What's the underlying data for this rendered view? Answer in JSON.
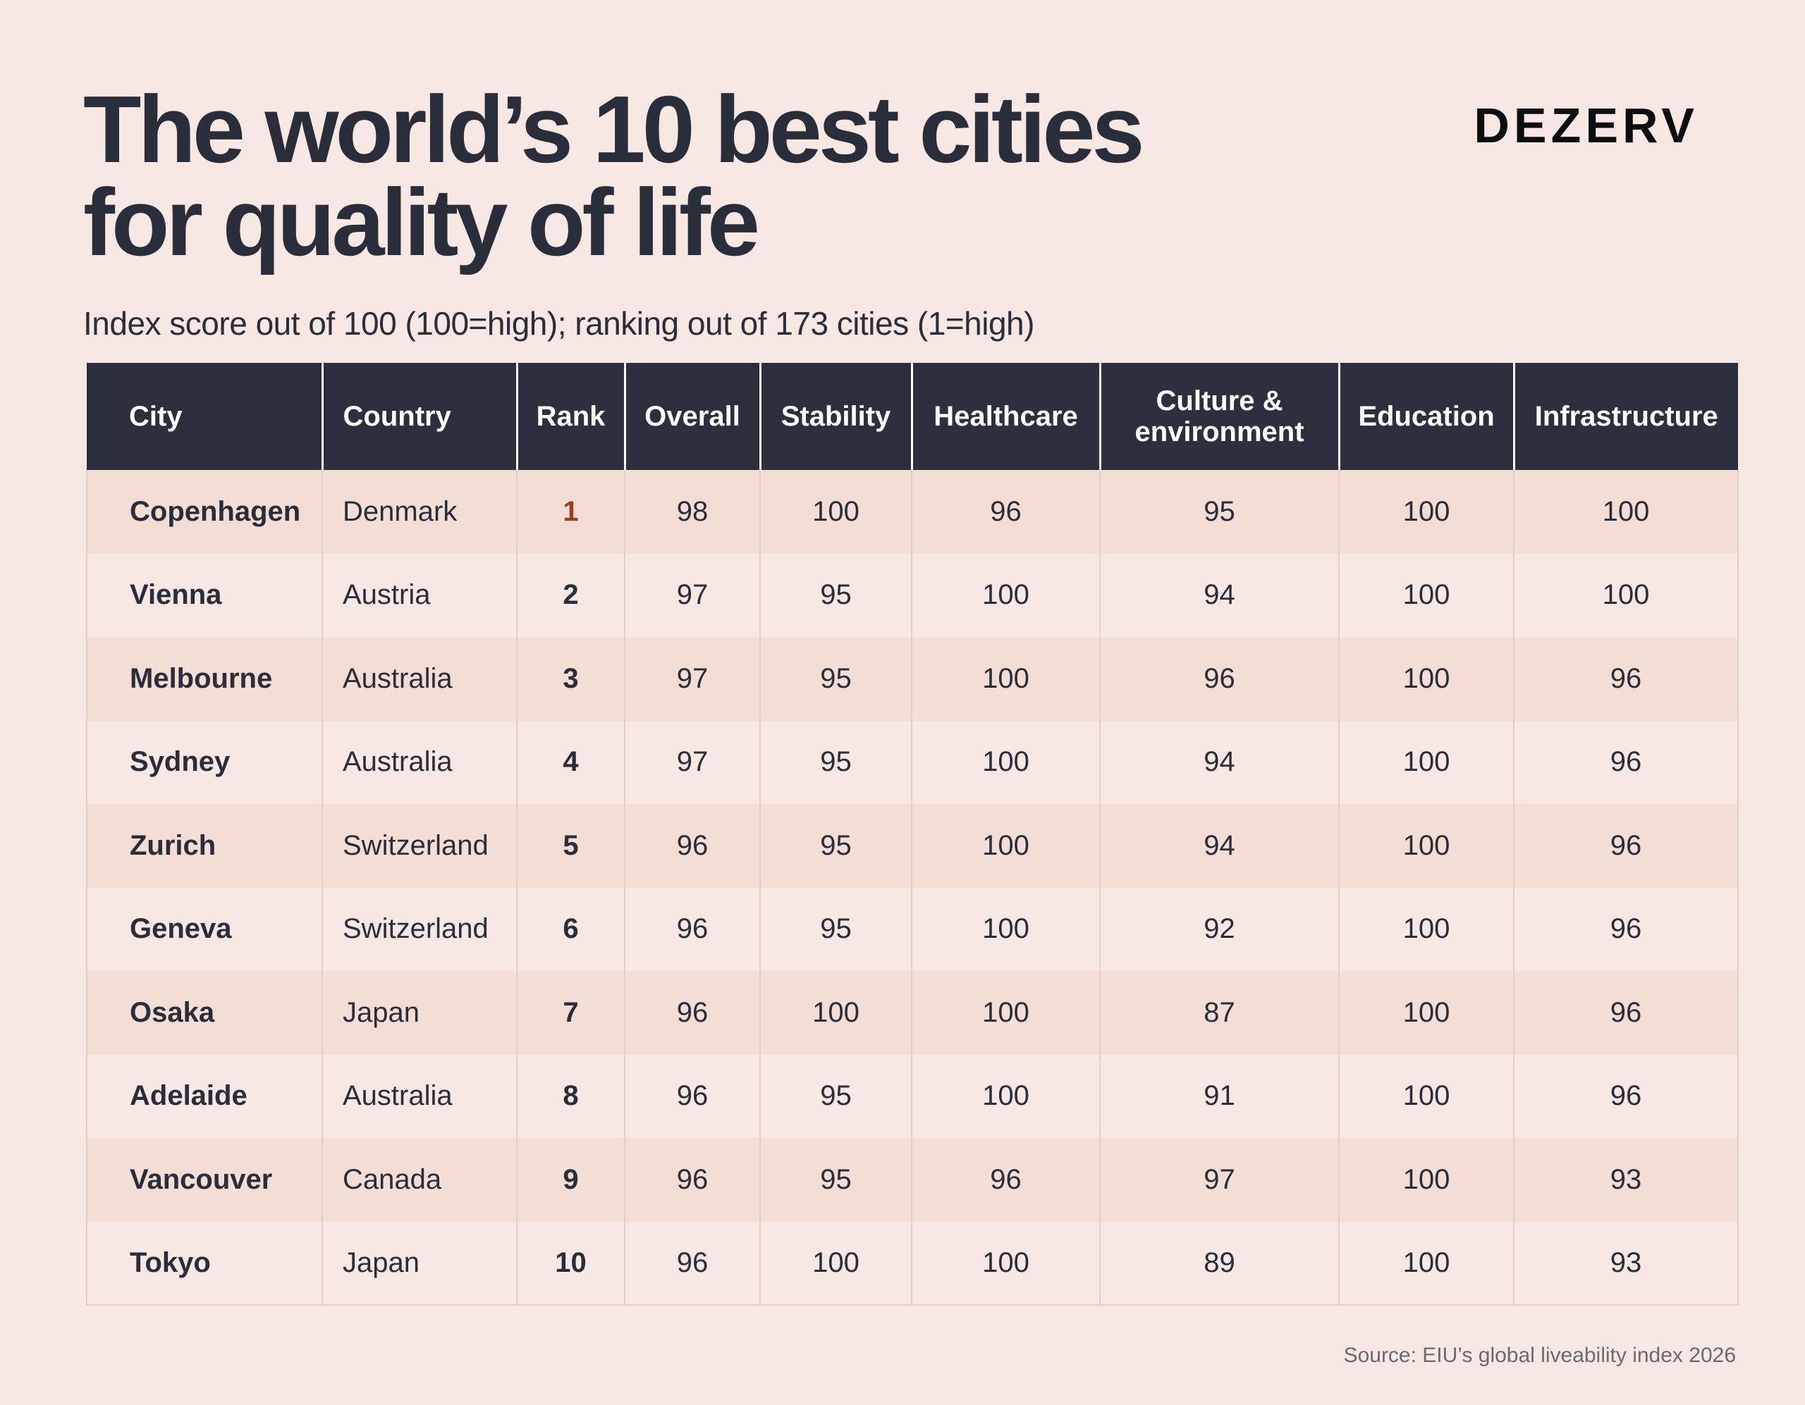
{
  "header": {
    "title_line1": "The world’s 10 best cities",
    "title_line2": "for quality of life",
    "subtitle": "Index score out of 100 (100=high); ranking out of 173 cities (1=high)",
    "logo": "DEZERV"
  },
  "footer": {
    "source": "Source: EIU’s global liveability index 2026"
  },
  "colors": {
    "background": "#f8e8e3",
    "header_fill": "#2b2f3e",
    "row_alt_fill": "#f4ddd5",
    "rank_highlight": "#9a3b22"
  },
  "chart_data": {
    "type": "table",
    "title": "The world’s 10 best cities for quality of life",
    "subtitle": "Index score out of 100 (100=high); ranking out of 173 cities (1=high)",
    "columns": [
      "City",
      "Country",
      "Rank",
      "Overall",
      "Stability",
      "Healthcare",
      "Culture & environment",
      "Education",
      "Infrastructure"
    ],
    "rows": [
      [
        "Copenhagen",
        "Denmark",
        "1",
        "98",
        "100",
        "96",
        "95",
        "100",
        "100"
      ],
      [
        "Vienna",
        "Austria",
        "2",
        "97",
        "95",
        "100",
        "94",
        "100",
        "100"
      ],
      [
        "Melbourne",
        "Australia",
        "3",
        "97",
        "95",
        "100",
        "96",
        "100",
        "96"
      ],
      [
        "Sydney",
        "Australia",
        "4",
        "97",
        "95",
        "100",
        "94",
        "100",
        "96"
      ],
      [
        "Zurich",
        "Switzerland",
        "5",
        "96",
        "95",
        "100",
        "94",
        "100",
        "96"
      ],
      [
        "Geneva",
        "Switzerland",
        "6",
        "96",
        "95",
        "100",
        "92",
        "100",
        "96"
      ],
      [
        "Osaka",
        "Japan",
        "7",
        "96",
        "100",
        "100",
        "87",
        "100",
        "96"
      ],
      [
        "Adelaide",
        "Australia",
        "8",
        "96",
        "95",
        "100",
        "91",
        "100",
        "96"
      ],
      [
        "Vancouver",
        "Canada",
        "9",
        "96",
        "95",
        "96",
        "97",
        "100",
        "93"
      ],
      [
        "Tokyo",
        "Japan",
        "10",
        "96",
        "100",
        "100",
        "89",
        "100",
        "93"
      ]
    ],
    "source": "Source: EIU’s global liveability index 2026"
  }
}
